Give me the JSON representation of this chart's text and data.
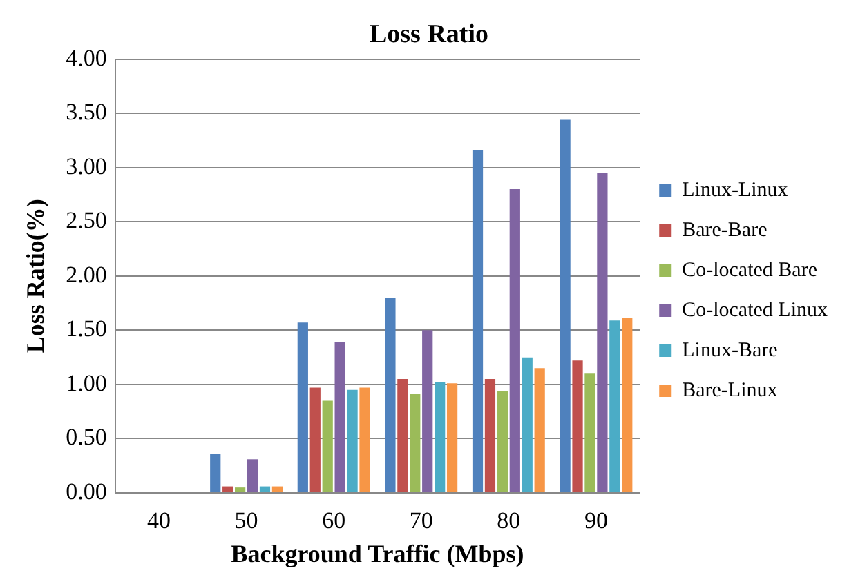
{
  "chart_data": {
    "type": "bar",
    "title": "Loss Ratio",
    "xlabel": "Background Traffic (Mbps)",
    "ylabel": "Loss Ratio(%)",
    "categories": [
      "40",
      "50",
      "60",
      "70",
      "80",
      "90"
    ],
    "series": [
      {
        "name": "Linux-Linux",
        "color": "#4f81bd",
        "values": [
          0,
          0.36,
          1.57,
          1.8,
          3.16,
          3.44
        ]
      },
      {
        "name": "Bare-Bare",
        "color": "#c0504d",
        "values": [
          0,
          0.06,
          0.97,
          1.05,
          1.05,
          1.22
        ]
      },
      {
        "name": "Co-located Bare",
        "color": "#9bbb59",
        "values": [
          0,
          0.05,
          0.85,
          0.91,
          0.94,
          1.1
        ]
      },
      {
        "name": "Co-located Linux",
        "color": "#8064a2",
        "values": [
          0,
          0.31,
          1.39,
          1.5,
          2.8,
          2.95
        ]
      },
      {
        "name": "Linux-Bare",
        "color": "#4bacc6",
        "values": [
          0,
          0.06,
          0.95,
          1.02,
          1.25,
          1.59
        ]
      },
      {
        "name": "Bare-Linux",
        "color": "#f79646",
        "values": [
          0,
          0.06,
          0.97,
          1.01,
          1.15,
          1.61
        ]
      }
    ],
    "ylim": [
      0,
      4
    ],
    "yticks": [
      {
        "value": 0,
        "label": "0.00"
      },
      {
        "value": 0.5,
        "label": "0.50"
      },
      {
        "value": 1,
        "label": "1.00"
      },
      {
        "value": 1.5,
        "label": "1.50"
      },
      {
        "value": 2,
        "label": "2.00"
      },
      {
        "value": 2.5,
        "label": "2.50"
      },
      {
        "value": 3,
        "label": "3.00"
      },
      {
        "value": 3.5,
        "label": "3.50"
      },
      {
        "value": 4,
        "label": "4.00"
      }
    ],
    "grid": "y",
    "legend": "right"
  }
}
